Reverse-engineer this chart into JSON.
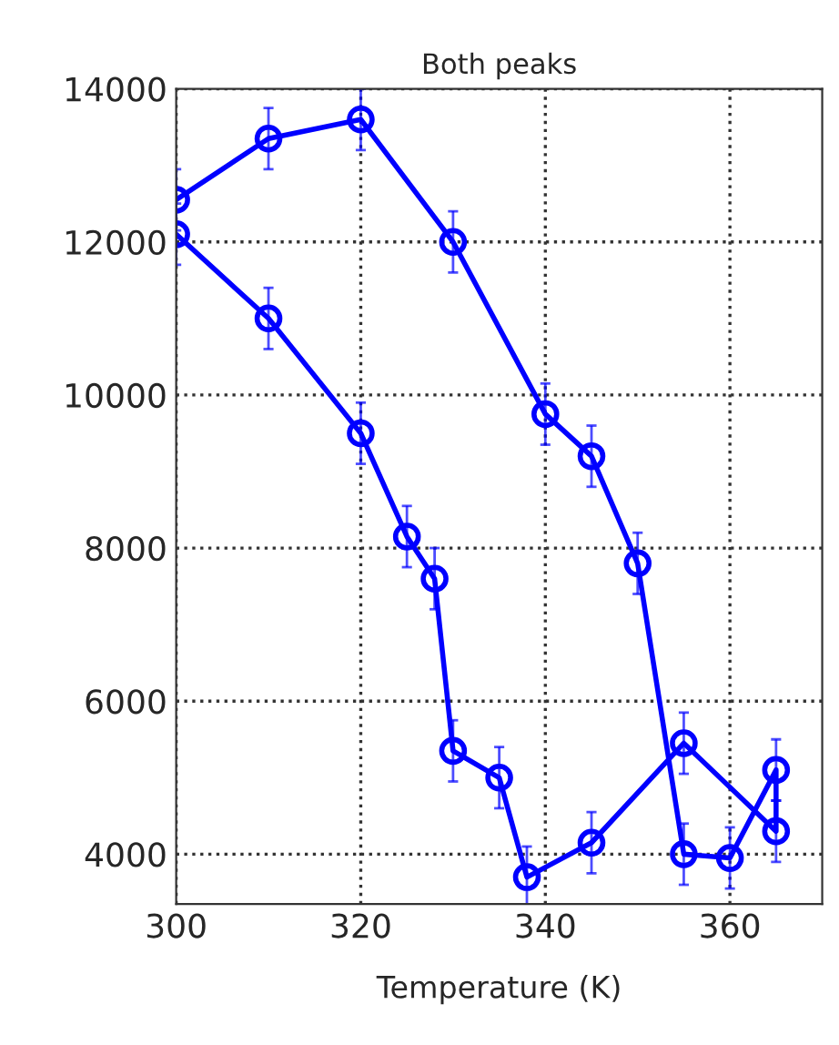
{
  "chart_data": {
    "type": "line",
    "title": "Both peaks",
    "xlabel": "Temperature (K)",
    "x": [
      300,
      310,
      320,
      325,
      328,
      330,
      335,
      338,
      345,
      355,
      365,
      365,
      360,
      355,
      350,
      345,
      340,
      330,
      320,
      310,
      300
    ],
    "series": [
      {
        "color": "#0000ff",
        "values": [
          12100,
          11000,
          9500,
          8150,
          7600,
          5350,
          5000,
          3700,
          4150,
          5450,
          4300,
          5100,
          3950,
          4000,
          7800,
          9200,
          9750,
          12000,
          13600,
          13350,
          12550
        ],
        "errors": [
          400,
          400,
          400,
          400,
          400,
          400,
          400,
          400,
          400,
          400,
          400,
          400,
          400,
          400,
          400,
          400,
          400,
          400,
          400,
          400,
          400
        ]
      }
    ],
    "xlim": [
      300,
      370
    ],
    "ylim": [
      3350,
      14000
    ],
    "xticks": [
      300,
      320,
      340,
      360
    ],
    "yticks": [
      4000,
      6000,
      8000,
      10000,
      12000,
      14000
    ],
    "grid": true,
    "marker": "circle",
    "line_style": "solid"
  }
}
